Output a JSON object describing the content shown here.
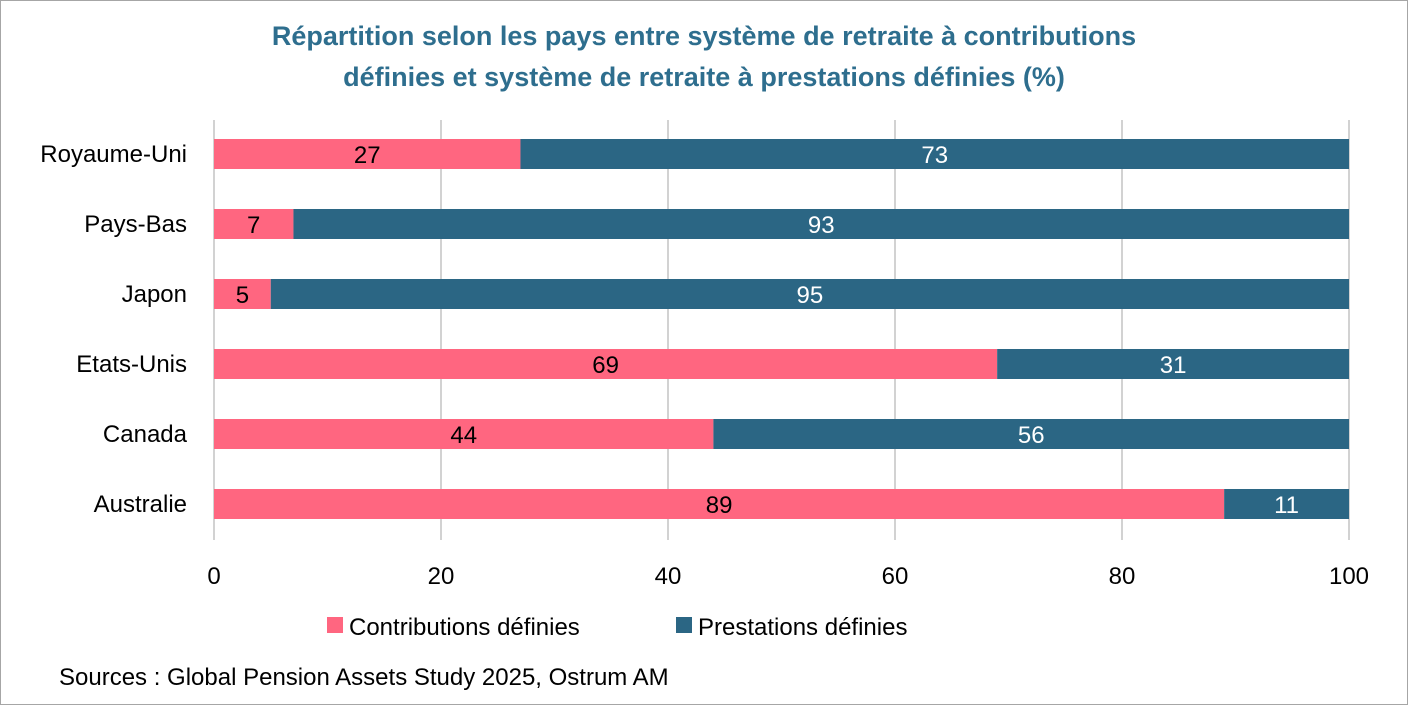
{
  "chart_data": {
    "type": "bar",
    "orientation": "horizontal",
    "stacked": true,
    "title": [
      "Répartition selon les pays entre système de retraite à contributions",
      "définies et système de retraite à prestations définies (%)"
    ],
    "categories": [
      "Royaume-Uni",
      "Pays-Bas",
      "Japon",
      "Etats-Unis",
      "Canada",
      "Australie"
    ],
    "series": [
      {
        "name": "Contributions définies",
        "color": "#ff6680",
        "label_color": "#000000",
        "values": [
          27,
          7,
          5,
          69,
          44,
          89
        ]
      },
      {
        "name": "Prestations définies",
        "color": "#2b6684",
        "label_color": "#ffffff",
        "values": [
          73,
          93,
          95,
          31,
          56,
          11
        ]
      }
    ],
    "xlim": [
      0,
      100
    ],
    "xticks": [
      "0",
      "20",
      "40",
      "60",
      "80",
      "100"
    ],
    "grid": true,
    "legend_position": "bottom",
    "source": "Sources : Global Pension Assets Study 2025, Ostrum AM"
  }
}
